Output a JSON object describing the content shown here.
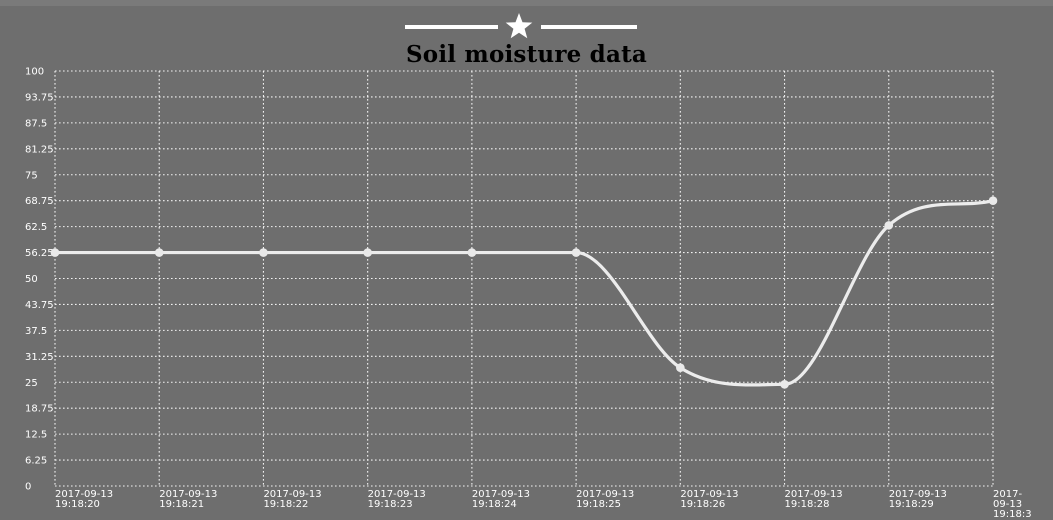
{
  "chart_data": {
    "type": "line",
    "title": "Soil moisture data",
    "xlabel": "",
    "ylabel": "",
    "ylim": [
      0,
      100
    ],
    "y_ticks": [
      "0",
      "6.25",
      "12.5",
      "18.75",
      "25",
      "31.25",
      "37.5",
      "43.75",
      "50",
      "56.25",
      "62.5",
      "68.75",
      "75",
      "81.25",
      "87.5",
      "93.75",
      "100"
    ],
    "categories": [
      [
        "2017-09-13",
        "19:18:20"
      ],
      [
        "2017-09-13",
        "19:18:21"
      ],
      [
        "2017-09-13",
        "19:18:22"
      ],
      [
        "2017-09-13",
        "19:18:23"
      ],
      [
        "2017-09-13",
        "19:18:24"
      ],
      [
        "2017-09-13",
        "19:18:25"
      ],
      [
        "2017-09-13",
        "19:18:26"
      ],
      [
        "2017-09-13",
        "19:18:28"
      ],
      [
        "2017-09-13",
        "19:18:29"
      ],
      [
        "2017-",
        "09-13",
        "19:18:3"
      ]
    ],
    "series": [
      {
        "values": [
          56.25,
          56.25,
          56.25,
          56.25,
          56.25,
          56.25,
          28.5,
          24.5,
          62.8,
          68.75
        ]
      }
    ],
    "grid": true,
    "grid_style": "dotted",
    "line_color": "#ececec",
    "grid_color": "#f2f2f2",
    "background_color": "#6e6e6e",
    "decoration": "star-with-lines"
  }
}
